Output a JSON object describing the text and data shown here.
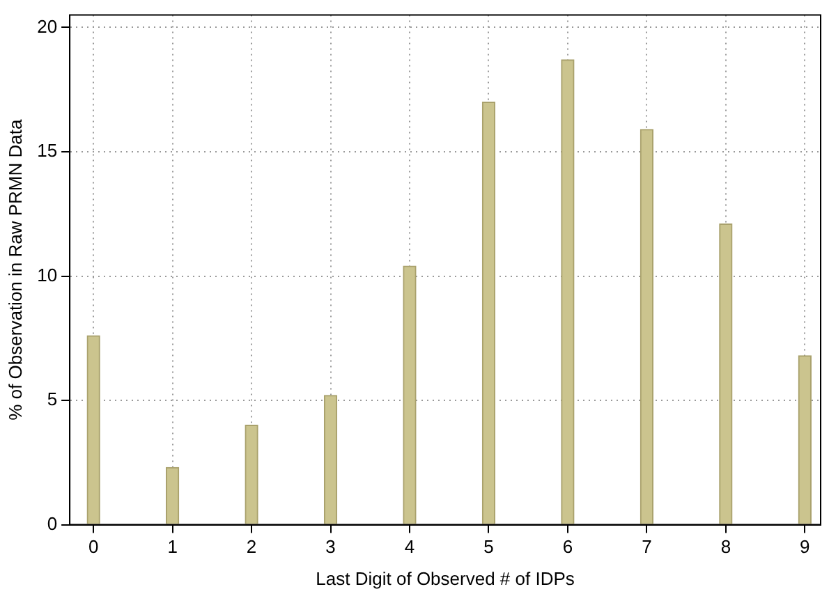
{
  "chart_data": {
    "type": "bar",
    "xlabel": "Last Digit of Observed # of IDPs",
    "ylabel": "% of Observation in Raw PRMN Data",
    "x": [
      0,
      1,
      2,
      3,
      4,
      5,
      6,
      7,
      8,
      9
    ],
    "values": [
      7.6,
      2.3,
      4.0,
      5.2,
      10.4,
      17.0,
      18.7,
      15.9,
      12.1,
      6.8
    ],
    "color": "#cbc48e",
    "xlim": [
      -0.3,
      9.2
    ],
    "xticks": [
      0,
      1,
      2,
      3,
      4,
      5,
      6,
      7,
      8,
      9
    ],
    "ylim": [
      0,
      20.5
    ],
    "yticks": [
      0,
      5,
      10,
      15,
      20
    ],
    "grid": true,
    "legend": false
  }
}
